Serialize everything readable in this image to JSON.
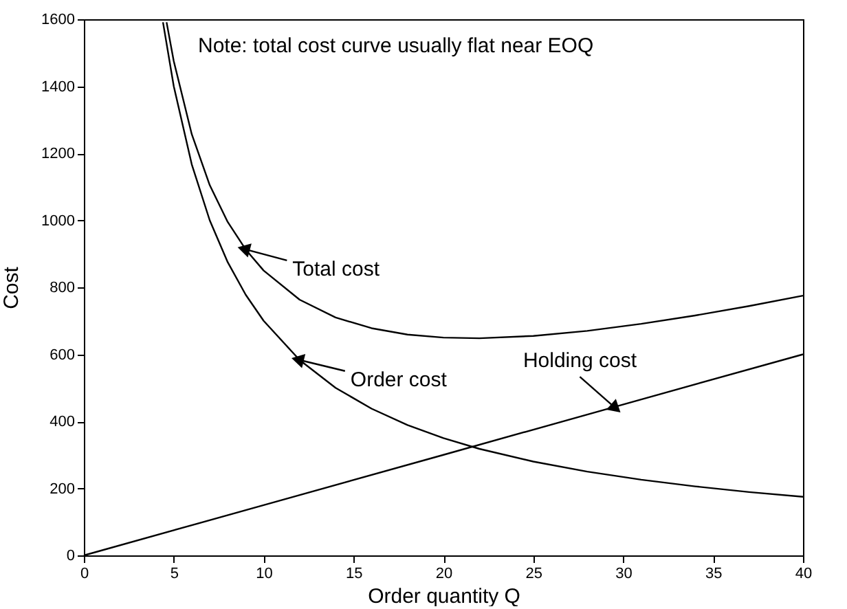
{
  "chart_data": {
    "type": "line",
    "xlabel": "Order quantity Q",
    "ylabel": "Cost",
    "annotations": [
      "Note: total cost curve usually flat near EOQ",
      {
        "text": "Total cost",
        "x": 9,
        "y": 913
      },
      {
        "text": "Order cost",
        "x": 12,
        "y": 583
      },
      {
        "text": "Holding cost",
        "x": 29.5,
        "y": 443
      }
    ],
    "xlim": [
      0,
      40
    ],
    "xticks": [
      0,
      5,
      10,
      15,
      20,
      25,
      30,
      35,
      40
    ],
    "ylim": [
      0,
      1600
    ],
    "yticks": [
      0,
      200,
      400,
      600,
      800,
      1000,
      1200,
      1400,
      1600
    ],
    "grid": false,
    "series": [
      {
        "color": "#000000",
        "x": [
          4.6,
          5,
          6,
          7,
          8,
          9,
          10,
          12,
          14,
          16,
          18,
          20,
          22,
          25,
          28,
          31,
          34,
          37,
          40
        ],
        "values": [
          1591,
          1475,
          1257,
          1105,
          995,
          913,
          850,
          763,
          710,
          678,
          659,
          650,
          648,
          655,
          670,
          691,
          716,
          744,
          775
        ]
      },
      {
        "color": "#000000",
        "x": [
          4.4,
          5,
          6,
          7,
          8,
          9,
          10,
          12,
          14,
          16,
          18,
          20,
          22,
          25,
          28,
          31,
          34,
          37,
          40
        ],
        "values": [
          1591,
          1400,
          1167,
          1000,
          875,
          778,
          700,
          583,
          500,
          438,
          389,
          350,
          318,
          280,
          250,
          226,
          206,
          189,
          175
        ]
      },
      {
        "color": "#000000",
        "x": [
          0,
          10,
          20,
          29.5,
          40
        ],
        "values": [
          0,
          150,
          300,
          443,
          600
        ]
      }
    ]
  }
}
